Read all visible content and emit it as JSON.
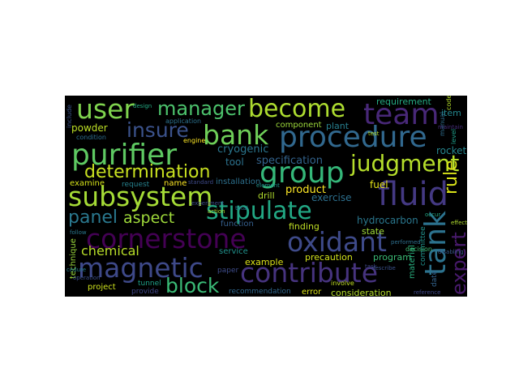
{
  "cloud": {
    "background": "#000000",
    "words": [
      {
        "text": "user",
        "color": "#7fd34e"
      },
      {
        "text": "manager",
        "color": "#4cc26c"
      },
      {
        "text": "become",
        "color": "#addc30"
      },
      {
        "text": "team",
        "color": "#482878"
      },
      {
        "text": "bank",
        "color": "#6ece58"
      },
      {
        "text": "procedure",
        "color": "#31688e"
      },
      {
        "text": "purifier",
        "color": "#5ec962"
      },
      {
        "text": "insure",
        "color": "#3b528b"
      },
      {
        "text": "determination",
        "color": "#c8e020"
      },
      {
        "text": "group",
        "color": "#35b779"
      },
      {
        "text": "judgment",
        "color": "#b5de2b"
      },
      {
        "text": "subsystem",
        "color": "#a5db36"
      },
      {
        "text": "fluid",
        "color": "#443983"
      },
      {
        "text": "panel",
        "color": "#2a788e"
      },
      {
        "text": "aspect",
        "color": "#9fda3a"
      },
      {
        "text": "stipulate",
        "color": "#22a884"
      },
      {
        "text": "cornerstone",
        "color": "#440154"
      },
      {
        "text": "oxidant",
        "color": "#3e4a89"
      },
      {
        "text": "magnetic",
        "color": "#3e4989"
      },
      {
        "text": "contribute",
        "color": "#46337e"
      },
      {
        "text": "block",
        "color": "#3aba76"
      },
      {
        "text": "tank",
        "color": "#2c728e"
      },
      {
        "text": "expert",
        "color": "#481a6c"
      },
      {
        "text": "rule",
        "color": "#d8e219"
      },
      {
        "text": "chemical",
        "color": "#b8de29"
      },
      {
        "text": "specification",
        "color": "#33638d"
      },
      {
        "text": "cryogenic",
        "color": "#2a768e"
      },
      {
        "text": "tool",
        "color": "#2c728e"
      },
      {
        "text": "powder",
        "color": "#bddf26"
      },
      {
        "text": "requirement",
        "color": "#25ab82"
      },
      {
        "text": "component",
        "color": "#9dd93b"
      },
      {
        "text": "plant",
        "color": "#277f8e"
      },
      {
        "text": "item",
        "color": "#24878e"
      },
      {
        "text": "rocket",
        "color": "#25858e"
      },
      {
        "text": "product",
        "color": "#fde725"
      },
      {
        "text": "exercise",
        "color": "#2d708e"
      },
      {
        "text": "hydrocarbon",
        "color": "#2a778e"
      },
      {
        "text": "fuel",
        "color": "#e5e419"
      },
      {
        "text": "state",
        "color": "#a0da39"
      },
      {
        "text": "finding",
        "color": "#c0df25"
      },
      {
        "text": "drill",
        "color": "#b2dd2d"
      },
      {
        "text": "precaution",
        "color": "#d2e21b"
      },
      {
        "text": "program",
        "color": "#3bbb75"
      },
      {
        "text": "service",
        "color": "#21918c"
      },
      {
        "text": "example",
        "color": "#dde318"
      },
      {
        "text": "function",
        "color": "#355f8d"
      },
      {
        "text": "installation",
        "color": "#2d708e"
      },
      {
        "text": "name",
        "color": "#fde725"
      },
      {
        "text": "request",
        "color": "#26828e"
      },
      {
        "text": "examine",
        "color": "#d5e21a"
      },
      {
        "text": "consideration",
        "color": "#b5de2b"
      },
      {
        "text": "error",
        "color": "#dae319"
      },
      {
        "text": "recommendation",
        "color": "#31688e"
      },
      {
        "text": "project",
        "color": "#cde11d"
      },
      {
        "text": "provide",
        "color": "#3f4788"
      },
      {
        "text": "tunnel",
        "color": "#1fa188"
      },
      {
        "text": "technique",
        "color": "#9bd93c"
      },
      {
        "text": "material",
        "color": "#29af7f"
      },
      {
        "text": "committee",
        "color": "#21918c"
      },
      {
        "text": "date",
        "color": "#33638d"
      },
      {
        "text": "paper",
        "color": "#3e4c8a"
      },
      {
        "text": "code",
        "color": "#b5de2b"
      },
      {
        "text": "manual",
        "color": "#2e6e8e"
      },
      {
        "text": "level",
        "color": "#1f9e89"
      },
      {
        "text": "decision",
        "color": "#3dbc74"
      },
      {
        "text": "involve",
        "color": "#c2df23"
      },
      {
        "text": "application",
        "color": "#2c718e"
      },
      {
        "text": "design",
        "color": "#24aa83"
      },
      {
        "text": "engine",
        "color": "#fde725"
      },
      {
        "text": "condition",
        "color": "#2e6e8e"
      },
      {
        "text": "include",
        "color": "#3a538b"
      },
      {
        "text": "operation",
        "color": "#3c4f8a"
      },
      {
        "text": "occur",
        "color": "#22a785"
      },
      {
        "text": "describe",
        "color": "#3b528b"
      },
      {
        "text": "element",
        "color": "#21918c"
      },
      {
        "text": "total",
        "color": "#2a768e"
      },
      {
        "text": "experiment",
        "color": "#3d4e8a"
      },
      {
        "text": "standard",
        "color": "#3e4a89"
      },
      {
        "text": "action",
        "color": "#b0dd2f"
      },
      {
        "text": "reference",
        "color": "#3f4889"
      },
      {
        "text": "maintain",
        "color": "#472d7b"
      },
      {
        "text": "test",
        "color": "#b8de29"
      },
      {
        "text": "task",
        "color": "#3f4889"
      },
      {
        "text": "effect",
        "color": "#b0dd2f"
      },
      {
        "text": "follow",
        "color": "#2a788e"
      },
      {
        "text": "cedure",
        "color": "#277f8e"
      },
      {
        "text": "performed",
        "color": "#2e6f8e"
      },
      {
        "text": "disabling",
        "color": "#38598c"
      }
    ]
  }
}
